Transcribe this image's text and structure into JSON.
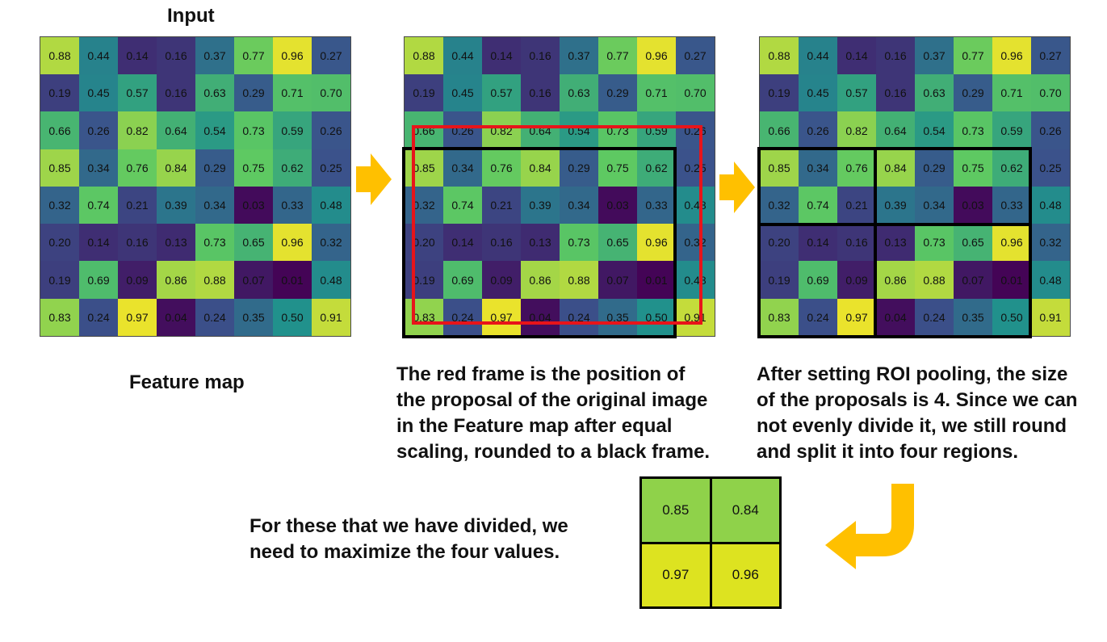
{
  "labels": {
    "input": "Input",
    "feature_map": "Feature map"
  },
  "captions": {
    "red_frame": [
      "The red frame is the position of",
      "the proposal of the original image",
      "in the Feature map after equal",
      "scaling, rounded to a black frame."
    ],
    "roi_pooling": [
      "After setting ROI pooling, the size",
      "of the proposals is 4. Since we can",
      "not evenly divide it, we still round",
      "and split it into four regions."
    ],
    "maximize": [
      "For these that we have divided, we",
      "need to maximize the four values."
    ]
  },
  "feature_map": [
    [
      "0.88",
      "0.44",
      "0.14",
      "0.16",
      "0.37",
      "0.77",
      "0.96",
      "0.27"
    ],
    [
      "0.19",
      "0.45",
      "0.57",
      "0.16",
      "0.63",
      "0.29",
      "0.71",
      "0.70"
    ],
    [
      "0.66",
      "0.26",
      "0.82",
      "0.64",
      "0.54",
      "0.73",
      "0.59",
      "0.26"
    ],
    [
      "0.85",
      "0.34",
      "0.76",
      "0.84",
      "0.29",
      "0.75",
      "0.62",
      "0.25"
    ],
    [
      "0.32",
      "0.74",
      "0.21",
      "0.39",
      "0.34",
      "0.03",
      "0.33",
      "0.48"
    ],
    [
      "0.20",
      "0.14",
      "0.16",
      "0.13",
      "0.73",
      "0.65",
      "0.96",
      "0.32"
    ],
    [
      "0.19",
      "0.69",
      "0.09",
      "0.86",
      "0.88",
      "0.07",
      "0.01",
      "0.48"
    ],
    [
      "0.83",
      "0.24",
      "0.97",
      "0.04",
      "0.24",
      "0.35",
      "0.50",
      "0.91"
    ]
  ],
  "pooled_output": [
    [
      "0.85",
      "0.84"
    ],
    [
      "0.97",
      "0.96"
    ]
  ],
  "colormap": "viridis",
  "colors": {
    "red_frame": "#e8141a",
    "black_frame": "#000000",
    "arrow": "#ffc000",
    "pooled_green": "#8fd24a",
    "pooled_yellow": "#dde320"
  }
}
